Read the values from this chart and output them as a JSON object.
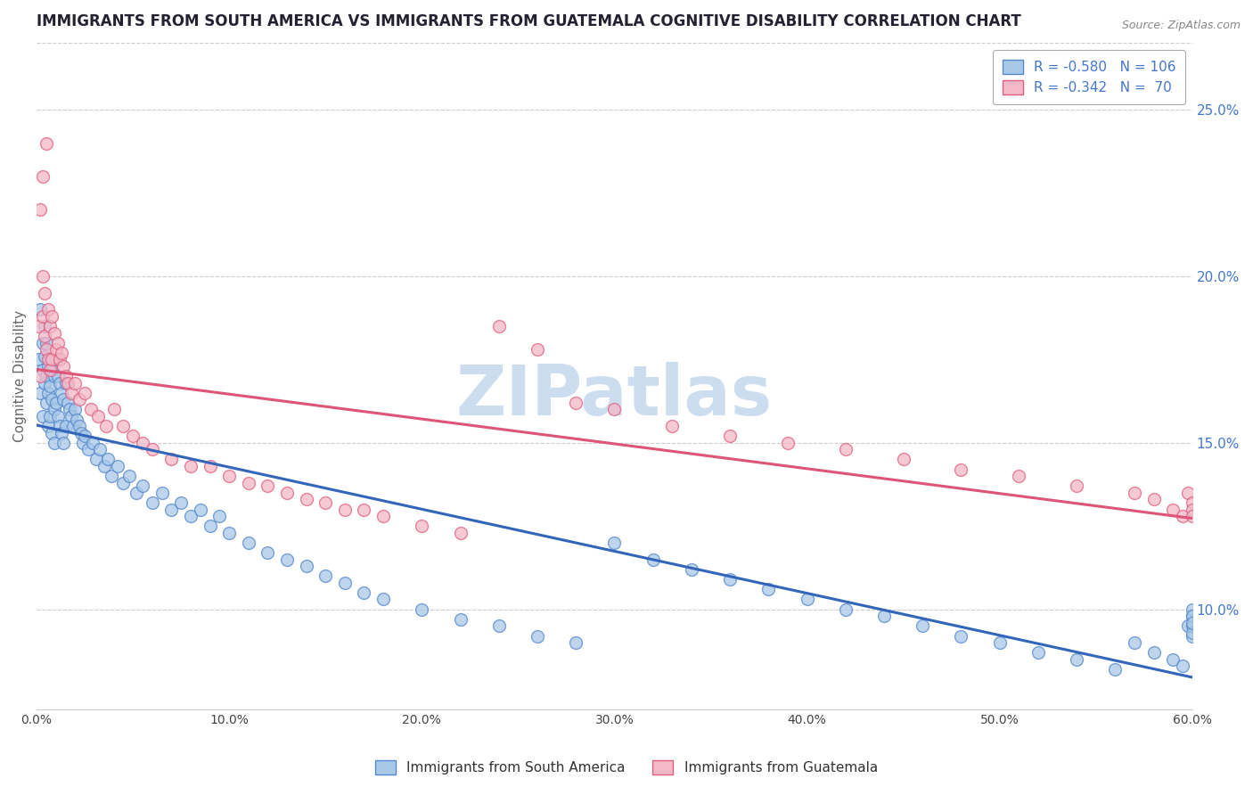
{
  "title": "IMMIGRANTS FROM SOUTH AMERICA VS IMMIGRANTS FROM GUATEMALA COGNITIVE DISABILITY CORRELATION CHART",
  "source_text": "Source: ZipAtlas.com",
  "ylabel": "Cognitive Disability",
  "legend_entries": [
    {
      "label": "R = -0.580   N = 106",
      "color": "#a8c8e8"
    },
    {
      "label": "R = -0.342   N =  70",
      "color": "#f4b8c8"
    }
  ],
  "blue_fill": "#a8c8e8",
  "pink_fill": "#f4b8c8",
  "blue_edge": "#5588cc",
  "pink_edge": "#e06080",
  "blue_line": "#3366bb",
  "pink_line": "#dd5577",
  "title_color": "#222233",
  "axis_label_color": "#666666",
  "right_tick_color": "#4477cc",
  "watermark_text": "ZIPatlas",
  "watermark_color": "#ccddf0",
  "xlim": [
    0.0,
    0.6
  ],
  "ylim": [
    0.07,
    0.27
  ],
  "xticks": [
    0.0,
    0.1,
    0.2,
    0.3,
    0.4,
    0.5,
    0.6
  ],
  "yticks_right": [
    0.1,
    0.15,
    0.2,
    0.25
  ],
  "blue_scatter_x": [
    0.001,
    0.002,
    0.002,
    0.003,
    0.003,
    0.003,
    0.004,
    0.004,
    0.004,
    0.005,
    0.005,
    0.005,
    0.006,
    0.006,
    0.006,
    0.007,
    0.007,
    0.007,
    0.008,
    0.008,
    0.008,
    0.009,
    0.009,
    0.009,
    0.01,
    0.01,
    0.011,
    0.011,
    0.012,
    0.012,
    0.013,
    0.013,
    0.014,
    0.014,
    0.015,
    0.015,
    0.016,
    0.017,
    0.018,
    0.019,
    0.02,
    0.021,
    0.022,
    0.023,
    0.024,
    0.025,
    0.027,
    0.029,
    0.031,
    0.033,
    0.035,
    0.037,
    0.039,
    0.042,
    0.045,
    0.048,
    0.052,
    0.055,
    0.06,
    0.065,
    0.07,
    0.075,
    0.08,
    0.085,
    0.09,
    0.095,
    0.1,
    0.11,
    0.12,
    0.13,
    0.14,
    0.15,
    0.16,
    0.17,
    0.18,
    0.2,
    0.22,
    0.24,
    0.26,
    0.28,
    0.3,
    0.32,
    0.34,
    0.36,
    0.38,
    0.4,
    0.42,
    0.44,
    0.46,
    0.48,
    0.5,
    0.52,
    0.54,
    0.56,
    0.57,
    0.58,
    0.59,
    0.595,
    0.598,
    0.6,
    0.6,
    0.6,
    0.6,
    0.6,
    0.6,
    0.6
  ],
  "blue_scatter_y": [
    0.175,
    0.19,
    0.165,
    0.18,
    0.172,
    0.158,
    0.176,
    0.168,
    0.185,
    0.17,
    0.162,
    0.18,
    0.173,
    0.165,
    0.155,
    0.175,
    0.167,
    0.158,
    0.172,
    0.163,
    0.153,
    0.17,
    0.16,
    0.15,
    0.175,
    0.162,
    0.17,
    0.158,
    0.168,
    0.155,
    0.165,
    0.153,
    0.163,
    0.15,
    0.168,
    0.155,
    0.162,
    0.16,
    0.158,
    0.155,
    0.16,
    0.157,
    0.155,
    0.153,
    0.15,
    0.152,
    0.148,
    0.15,
    0.145,
    0.148,
    0.143,
    0.145,
    0.14,
    0.143,
    0.138,
    0.14,
    0.135,
    0.137,
    0.132,
    0.135,
    0.13,
    0.132,
    0.128,
    0.13,
    0.125,
    0.128,
    0.123,
    0.12,
    0.117,
    0.115,
    0.113,
    0.11,
    0.108,
    0.105,
    0.103,
    0.1,
    0.097,
    0.095,
    0.092,
    0.09,
    0.12,
    0.115,
    0.112,
    0.109,
    0.106,
    0.103,
    0.1,
    0.098,
    0.095,
    0.092,
    0.09,
    0.087,
    0.085,
    0.082,
    0.09,
    0.087,
    0.085,
    0.083,
    0.095,
    0.092,
    0.098,
    0.1,
    0.095,
    0.093,
    0.098,
    0.096
  ],
  "pink_scatter_x": [
    0.001,
    0.002,
    0.002,
    0.003,
    0.003,
    0.003,
    0.004,
    0.004,
    0.005,
    0.005,
    0.006,
    0.006,
    0.007,
    0.007,
    0.008,
    0.008,
    0.009,
    0.01,
    0.011,
    0.012,
    0.013,
    0.014,
    0.015,
    0.016,
    0.018,
    0.02,
    0.022,
    0.025,
    0.028,
    0.032,
    0.036,
    0.04,
    0.045,
    0.05,
    0.055,
    0.06,
    0.07,
    0.08,
    0.09,
    0.1,
    0.11,
    0.12,
    0.13,
    0.14,
    0.15,
    0.16,
    0.17,
    0.18,
    0.2,
    0.22,
    0.24,
    0.26,
    0.28,
    0.3,
    0.33,
    0.36,
    0.39,
    0.42,
    0.45,
    0.48,
    0.51,
    0.54,
    0.57,
    0.58,
    0.59,
    0.595,
    0.598,
    0.6,
    0.6,
    0.6
  ],
  "pink_scatter_y": [
    0.185,
    0.22,
    0.17,
    0.2,
    0.188,
    0.23,
    0.182,
    0.195,
    0.24,
    0.178,
    0.19,
    0.175,
    0.185,
    0.172,
    0.188,
    0.175,
    0.183,
    0.178,
    0.18,
    0.175,
    0.177,
    0.173,
    0.17,
    0.168,
    0.165,
    0.168,
    0.163,
    0.165,
    0.16,
    0.158,
    0.155,
    0.16,
    0.155,
    0.152,
    0.15,
    0.148,
    0.145,
    0.143,
    0.143,
    0.14,
    0.138,
    0.137,
    0.135,
    0.133,
    0.132,
    0.13,
    0.13,
    0.128,
    0.125,
    0.123,
    0.185,
    0.178,
    0.162,
    0.16,
    0.155,
    0.152,
    0.15,
    0.148,
    0.145,
    0.142,
    0.14,
    0.137,
    0.135,
    0.133,
    0.13,
    0.128,
    0.135,
    0.132,
    0.13,
    0.128
  ]
}
